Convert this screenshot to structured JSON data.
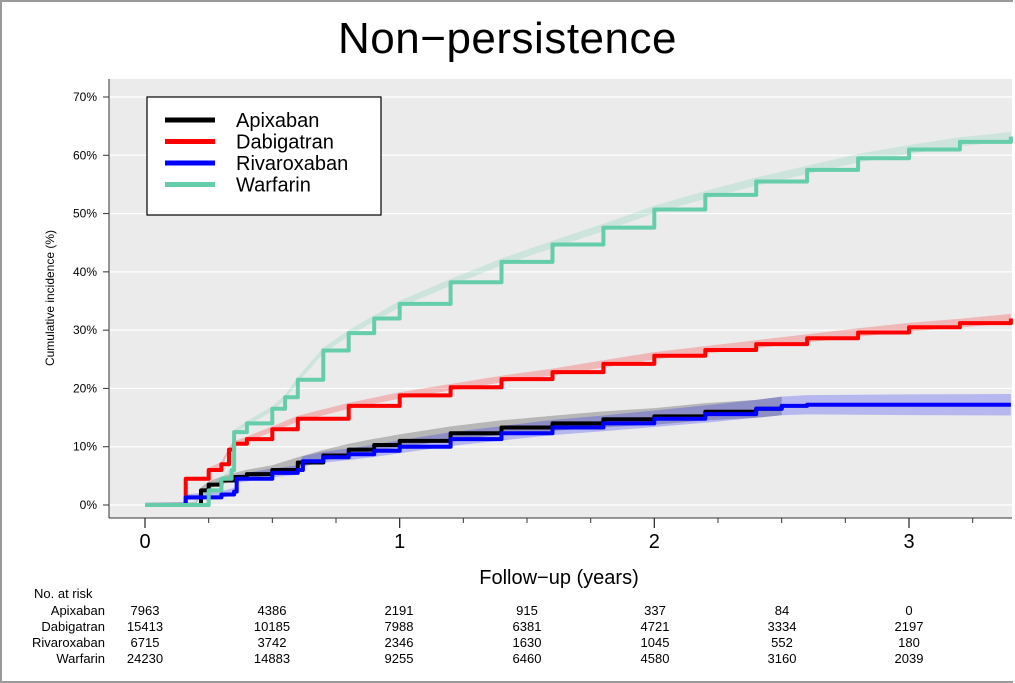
{
  "chart_data": {
    "type": "line",
    "title": "Non−persistence",
    "xlabel": "Follow−up (years)",
    "ylabel": "Cumulative incidence (%)",
    "xlim": [
      0,
      3.4
    ],
    "ylim": [
      0,
      70
    ],
    "x_ticks": [
      "0",
      "1",
      "2",
      "3"
    ],
    "y_ticks": [
      "0%",
      "10%",
      "20%",
      "30%",
      "40%",
      "50%",
      "60%",
      "70%"
    ],
    "legend_position": "top-left",
    "series": [
      {
        "name": "Apixaban",
        "color": "#000000",
        "x": [
          0,
          0.2,
          0.22,
          0.25,
          0.3,
          0.35,
          0.4,
          0.5,
          0.6,
          0.7,
          0.8,
          0.9,
          1.0,
          1.2,
          1.4,
          1.6,
          1.8,
          2.0,
          2.2,
          2.4,
          2.5
        ],
        "y": [
          0,
          0,
          2.5,
          3.5,
          4.2,
          4.8,
          5.3,
          6.0,
          7.3,
          8.5,
          9.5,
          10.3,
          11.0,
          12.3,
          13.3,
          14.0,
          14.7,
          15.2,
          16.0,
          16.5,
          17.0
        ]
      },
      {
        "name": "Dabigatran",
        "color": "#ff0000",
        "x": [
          0,
          0.15,
          0.16,
          0.24,
          0.25,
          0.3,
          0.33,
          0.35,
          0.4,
          0.5,
          0.6,
          0.8,
          1.0,
          1.2,
          1.4,
          1.6,
          1.8,
          2.0,
          2.2,
          2.4,
          2.6,
          2.8,
          3.0,
          3.2,
          3.4
        ],
        "y": [
          0,
          0,
          4.5,
          4.5,
          6.0,
          7.0,
          9.5,
          10.5,
          11.3,
          13.0,
          14.8,
          17.0,
          18.8,
          20.2,
          21.6,
          22.8,
          24.2,
          25.6,
          26.6,
          27.6,
          28.6,
          29.6,
          30.5,
          31.2,
          32.0
        ]
      },
      {
        "name": "Rivaroxaban",
        "color": "#0000ff",
        "x": [
          0,
          0.15,
          0.16,
          0.3,
          0.35,
          0.36,
          0.5,
          0.6,
          0.62,
          0.7,
          0.8,
          0.9,
          1.0,
          1.2,
          1.4,
          1.6,
          1.8,
          2.0,
          2.2,
          2.4,
          2.5,
          2.6,
          2.8,
          3.0,
          3.4
        ],
        "y": [
          0,
          0,
          1.3,
          1.8,
          2.3,
          4.5,
          5.5,
          6.0,
          7.5,
          8.2,
          8.7,
          9.3,
          10.0,
          11.3,
          12.3,
          13.3,
          14.0,
          14.8,
          15.6,
          16.5,
          17.0,
          17.2,
          17.2,
          17.2,
          17.2
        ]
      },
      {
        "name": "Warfarin",
        "color": "#66cdaa",
        "x": [
          0,
          0.18,
          0.25,
          0.3,
          0.34,
          0.35,
          0.4,
          0.5,
          0.55,
          0.6,
          0.7,
          0.8,
          0.9,
          1.0,
          1.2,
          1.4,
          1.6,
          1.8,
          2.0,
          2.2,
          2.4,
          2.6,
          2.8,
          3.0,
          3.2,
          3.4
        ],
        "y": [
          0,
          0,
          2.5,
          4.5,
          6.0,
          12.5,
          14.0,
          16.5,
          18.5,
          21.5,
          26.5,
          29.5,
          32.0,
          34.5,
          38.2,
          41.7,
          44.7,
          47.6,
          50.7,
          53.2,
          55.5,
          57.5,
          59.5,
          61.0,
          62.3,
          63.2
        ]
      }
    ]
  },
  "risk_table": {
    "heading": "No. at risk",
    "rows": [
      {
        "name": "Apixaban",
        "values": [
          "7963",
          "4386",
          "2191",
          "915",
          "337",
          "84",
          "0"
        ]
      },
      {
        "name": "Dabigatran",
        "values": [
          "15413",
          "10185",
          "7988",
          "6381",
          "4721",
          "3334",
          "2197"
        ]
      },
      {
        "name": "Rivaroxaban",
        "values": [
          "6715",
          "3742",
          "2346",
          "1630",
          "1045",
          "552",
          "180"
        ]
      },
      {
        "name": "Warfarin",
        "values": [
          "24230",
          "14883",
          "9255",
          "6460",
          "4580",
          "3160",
          "2039"
        ]
      }
    ]
  }
}
